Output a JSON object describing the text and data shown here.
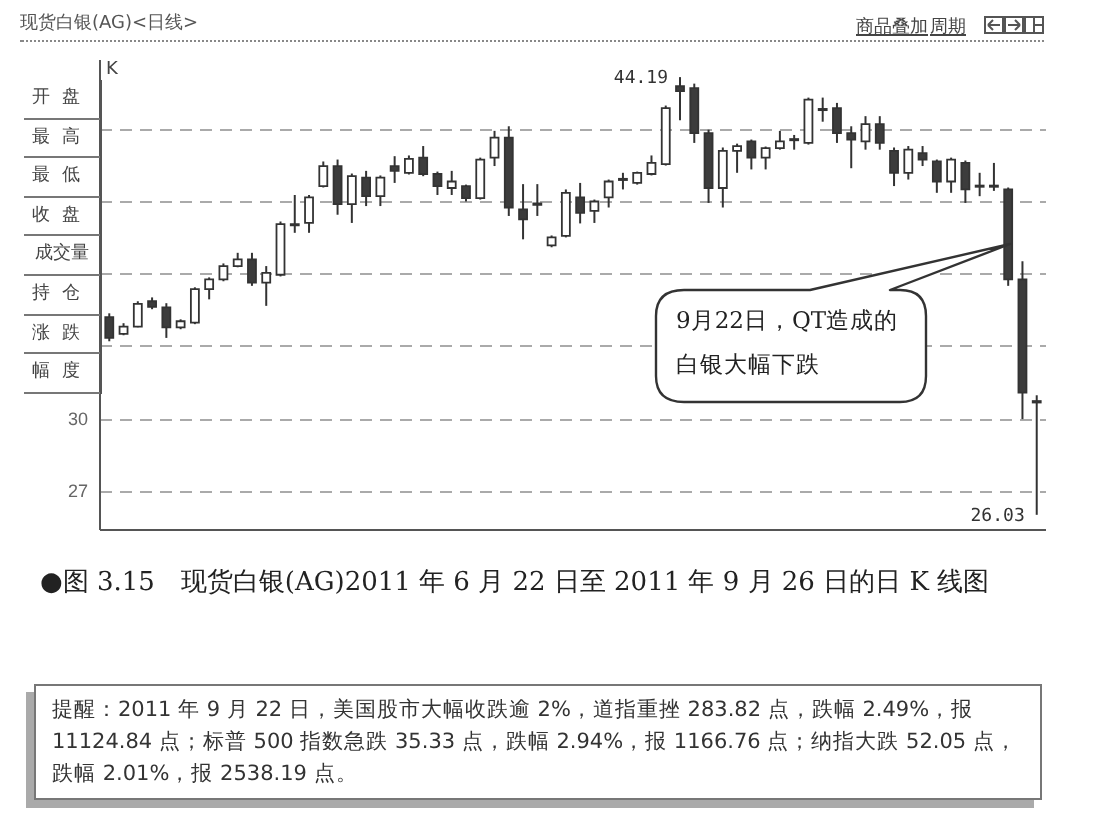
{
  "chart_data": {
    "type": "candlestick",
    "title": "现货白银(AG)<日线>",
    "ylabel": "K",
    "categories": [
      null,
      null,
      null,
      null,
      null,
      null,
      null,
      null,
      null,
      null,
      null,
      null,
      null,
      null,
      null,
      null,
      null,
      null,
      null,
      null,
      null,
      null,
      null,
      null,
      null,
      null,
      null,
      null,
      null,
      null,
      null,
      null,
      null,
      null,
      null,
      null,
      null,
      null,
      null,
      null,
      null,
      null,
      null,
      null,
      null,
      null,
      null,
      null,
      null,
      null,
      null,
      null,
      null,
      null,
      null,
      null,
      null,
      null,
      null,
      null,
      null,
      null,
      null,
      null,
      null,
      null
    ],
    "ohlc": [
      [
        34.23,
        34.39,
        33.23,
        33.37
      ],
      [
        33.54,
        33.98,
        33.48,
        33.84
      ],
      [
        33.84,
        34.89,
        33.81,
        34.78
      ],
      [
        34.89,
        35.05,
        34.56,
        34.66
      ],
      [
        34.64,
        34.81,
        33.37,
        33.81
      ],
      [
        33.81,
        34.14,
        33.73,
        34.06
      ],
      [
        34.0,
        35.47,
        33.94,
        35.39
      ],
      [
        35.39,
        35.88,
        34.97,
        35.8
      ],
      [
        35.8,
        36.46,
        35.72,
        36.35
      ],
      [
        36.35,
        36.9,
        36.3,
        36.63
      ],
      [
        36.63,
        36.9,
        35.53,
        35.66
      ],
      [
        35.66,
        36.35,
        34.7,
        36.07
      ],
      [
        35.99,
        38.2,
        35.92,
        38.09
      ],
      [
        38.09,
        39.3,
        37.73,
        38.04
      ],
      [
        38.14,
        39.3,
        37.73,
        39.2
      ],
      [
        39.67,
        40.69,
        39.61,
        40.5
      ],
      [
        40.5,
        40.77,
        38.48,
        38.92
      ],
      [
        38.92,
        40.19,
        38.14,
        40.08
      ],
      [
        40.02,
        40.3,
        38.84,
        39.25
      ],
      [
        39.25,
        40.11,
        38.84,
        40.02
      ],
      [
        40.5,
        40.91,
        39.8,
        40.3
      ],
      [
        40.22,
        40.94,
        40.15,
        40.8
      ],
      [
        40.85,
        41.33,
        40.08,
        40.17
      ],
      [
        40.17,
        40.27,
        39.3,
        39.67
      ],
      [
        39.59,
        40.3,
        39.3,
        39.86
      ],
      [
        39.67,
        39.73,
        39.03,
        39.17
      ],
      [
        39.17,
        40.85,
        39.11,
        40.77
      ],
      [
        40.85,
        41.96,
        40.5,
        41.68
      ],
      [
        41.68,
        42.15,
        38.43,
        38.78
      ],
      [
        38.7,
        39.75,
        37.46,
        38.29
      ],
      [
        38.95,
        39.75,
        38.43,
        38.89
      ],
      [
        37.21,
        37.62,
        37.13,
        37.54
      ],
      [
        37.6,
        39.53,
        37.54,
        39.39
      ],
      [
        39.2,
        39.8,
        38.12,
        38.56
      ],
      [
        38.64,
        39.11,
        38.14,
        39.03
      ],
      [
        39.2,
        39.94,
        38.78,
        39.86
      ],
      [
        39.92,
        40.22,
        39.53,
        39.97
      ],
      [
        39.8,
        40.27,
        39.73,
        40.22
      ],
      [
        40.17,
        40.94,
        40.11,
        40.63
      ],
      [
        40.58,
        43.01,
        40.52,
        42.9
      ],
      [
        43.81,
        44.19,
        42.4,
        43.61
      ],
      [
        43.73,
        43.92,
        41.46,
        41.87
      ],
      [
        41.87,
        42.01,
        38.97,
        39.59
      ],
      [
        39.59,
        41.27,
        38.78,
        41.13
      ],
      [
        41.13,
        41.43,
        40.22,
        41.33
      ],
      [
        41.52,
        41.6,
        40.36,
        40.85
      ],
      [
        40.85,
        41.31,
        40.36,
        41.24
      ],
      [
        41.24,
        41.96,
        41.18,
        41.52
      ],
      [
        41.57,
        41.79,
        41.18,
        41.62
      ],
      [
        41.46,
        43.34,
        41.39,
        43.26
      ],
      [
        42.82,
        43.34,
        42.34,
        42.87
      ],
      [
        42.9,
        43.12,
        41.46,
        41.87
      ],
      [
        41.87,
        42.15,
        40.41,
        41.6
      ],
      [
        41.52,
        42.57,
        41.18,
        42.24
      ],
      [
        42.24,
        42.57,
        41.18,
        41.46
      ],
      [
        41.13,
        41.27,
        39.67,
        40.22
      ],
      [
        40.22,
        41.33,
        39.94,
        41.18
      ],
      [
        41.04,
        41.33,
        40.5,
        40.77
      ],
      [
        40.69,
        40.77,
        39.39,
        39.86
      ],
      [
        39.86,
        40.85,
        39.39,
        40.77
      ],
      [
        40.63,
        40.73,
        38.97,
        39.53
      ],
      [
        39.64,
        40.22,
        39.25,
        39.69
      ],
      [
        39.69,
        40.63,
        39.47,
        39.64
      ],
      [
        39.53,
        39.61,
        35.53,
        35.8
      ],
      [
        35.8,
        36.55,
        30.0,
        31.1
      ],
      [
        30.69,
        30.99,
        26.03,
        30.75
      ]
    ],
    "colors": [
      "#3c3c3c",
      "#ffffff",
      "#ffffff",
      "#3c3c3c",
      "#3c3c3c",
      "#ffffff",
      "#ffffff",
      "#ffffff",
      "#ffffff",
      "#ffffff",
      "#3c3c3c",
      "#ffffff",
      "#ffffff",
      "#3c3c3c",
      "#ffffff",
      "#ffffff",
      "#3c3c3c",
      "#ffffff",
      "#3c3c3c",
      "#ffffff",
      "#3c3c3c",
      "#ffffff",
      "#3c3c3c",
      "#3c3c3c",
      "#ffffff",
      "#3c3c3c",
      "#ffffff",
      "#ffffff",
      "#3c3c3c",
      "#3c3c3c",
      "#3c3c3c",
      "#ffffff",
      "#ffffff",
      "#3c3c3c",
      "#ffffff",
      "#ffffff",
      "#ffffff",
      "#ffffff",
      "#ffffff",
      "#ffffff",
      "#3c3c3c",
      "#3c3c3c",
      "#3c3c3c",
      "#ffffff",
      "#ffffff",
      "#3c3c3c",
      "#ffffff",
      "#ffffff",
      "#ffffff",
      "#ffffff",
      "#ffffff",
      "#3c3c3c",
      "#3c3c3c",
      "#ffffff",
      "#3c3c3c",
      "#3c3c3c",
      "#ffffff",
      "#3c3c3c",
      "#3c3c3c",
      "#ffffff",
      "#3c3c3c",
      "#ffffff",
      "#3c3c3c",
      "#3c3c3c",
      "#3c3c3c",
      "#ffffff"
    ],
    "ylim": [
      25.4,
      44.9
    ],
    "yticks": [
      {
        "value": 27,
        "label": "27"
      },
      {
        "value": 30,
        "label": "30"
      },
      {
        "value": 33,
        "label": null
      },
      {
        "value": 36,
        "label": null
      },
      {
        "value": 39,
        "label": null
      },
      {
        "value": 42,
        "label": null
      }
    ],
    "grid": "y",
    "tick_labels": "y",
    "annotations": [
      "44.19",
      "26.03",
      "9月22日，QT造成的白银大幅下跌",
      "●图 3.15　现货白银(AG)2011 年 6 月 22 日至 2011 年 9 月 26 日的日 K 线图",
      "提醒：2011 年 9 月 22 日，美国股市大幅收跌逾 2%，道指重挫 283.82 点，跌幅 2.49%，报 11124.84 点；标普 500 指数急跌 35.33 点，跌幅 2.94%，报 1166.76 点；纳指大跌 52.05 点，跌幅 2.01%，报 2538.19 点。",
      "开盘",
      "最高",
      "最低",
      "收盘",
      "成交量",
      "持仓",
      "涨跌",
      "幅度",
      "商品叠加",
      "周期"
    ]
  }
}
